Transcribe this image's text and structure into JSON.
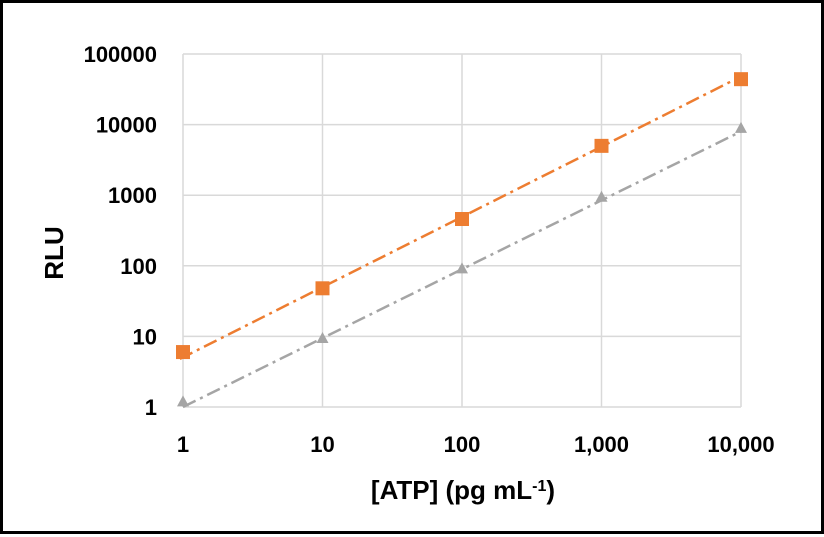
{
  "chart_data": {
    "type": "scatter",
    "title": "",
    "xlabel": "[ATP] (pg mL",
    "xlabel_superscript": "-1",
    "xlabel_suffix": ")",
    "ylabel": "RLU",
    "x_scale": "log",
    "y_scale": "log",
    "xlim": [
      1,
      10000
    ],
    "ylim": [
      1,
      100000
    ],
    "x_ticks": [
      1,
      10,
      100,
      1000,
      10000
    ],
    "x_tick_labels": [
      "1",
      "10",
      "100",
      "1,000",
      "10,000"
    ],
    "y_ticks": [
      1,
      10,
      100,
      1000,
      10000,
      100000
    ],
    "y_tick_labels": [
      "1",
      "10",
      "100",
      "1000",
      "10000",
      "100000"
    ],
    "grid": true,
    "legend": "none",
    "series": [
      {
        "marker": "square",
        "color": "#ED7D31",
        "x": [
          1,
          10,
          100,
          1000,
          10000
        ],
        "y": [
          6,
          48,
          460,
          5000,
          44000
        ],
        "trendline": {
          "style": "dash-dot",
          "x": [
            0.95,
            10400
          ],
          "y": [
            4.8,
            50000
          ]
        }
      },
      {
        "marker": "triangle",
        "color": "#A5A5A5",
        "x": [
          1,
          10,
          100,
          1000,
          10000
        ],
        "y": [
          1.2,
          9.5,
          92,
          950,
          9000
        ],
        "trendline": {
          "style": "dash-dot",
          "x": [
            1,
            10000
          ],
          "y": [
            1.0,
            8000
          ]
        }
      }
    ]
  }
}
